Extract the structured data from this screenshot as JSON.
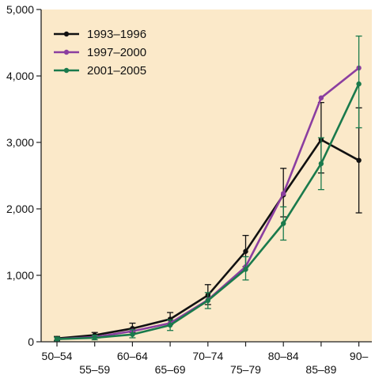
{
  "chart_data": {
    "type": "line",
    "title": "",
    "xlabel": "",
    "ylabel": "",
    "ylim": [
      0,
      5000
    ],
    "y_ticks": [
      0,
      1000,
      2000,
      3000,
      4000,
      5000
    ],
    "y_tick_labels": [
      "0",
      "1,000",
      "2,000",
      "3,000",
      "4,000",
      "5,000"
    ],
    "categories": [
      "50–54",
      "55–59",
      "60–64",
      "65–69",
      "70–74",
      "75–79",
      "80–84",
      "85–89",
      "90–"
    ],
    "grid": false,
    "legend_position": "top-left",
    "plot_background": "#fbe9c9",
    "series": [
      {
        "name": "1993–1996",
        "color": "#111111",
        "values": [
          50,
          100,
          200,
          340,
          700,
          1360,
          2210,
          3040,
          2730
        ],
        "error_low": [
          20,
          60,
          140,
          260,
          560,
          1130,
          1880,
          2540,
          1940
        ],
        "error_high": [
          80,
          140,
          280,
          440,
          860,
          1600,
          2610,
          3600,
          3520
        ]
      },
      {
        "name": "1997–2000",
        "color": "#8b3ea0",
        "values": [
          40,
          70,
          160,
          280,
          630,
          1130,
          2230,
          3670,
          4120
        ],
        "error_low": [],
        "error_high": []
      },
      {
        "name": "2001–2005",
        "color": "#1a7a4c",
        "values": [
          40,
          60,
          110,
          250,
          620,
          1090,
          1780,
          2680,
          3880
        ],
        "error_low": [
          10,
          30,
          60,
          170,
          500,
          930,
          1530,
          2290,
          3220
        ],
        "error_high": [
          70,
          100,
          180,
          330,
          740,
          1280,
          2030,
          3070,
          4600
        ]
      }
    ]
  }
}
